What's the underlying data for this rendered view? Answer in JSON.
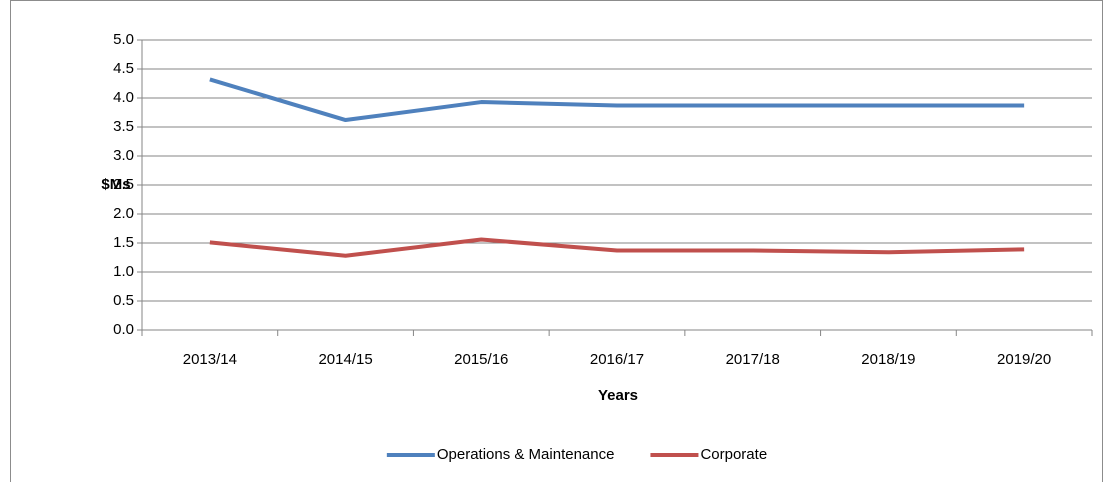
{
  "chart_data": {
    "type": "line",
    "y_label": "$Ms",
    "x_label": "Years",
    "categories": [
      "2013/14",
      "2014/15",
      "2015/16",
      "2016/17",
      "2017/18",
      "2018/19",
      "2019/20"
    ],
    "series": [
      {
        "name": "Operations & Maintenance",
        "color": "#4f81bd",
        "values": [
          4.32,
          3.62,
          3.93,
          3.87,
          3.87,
          3.87,
          3.87
        ]
      },
      {
        "name": "Corporate",
        "color": "#c0504d",
        "values": [
          1.51,
          1.28,
          1.56,
          1.37,
          1.37,
          1.34,
          1.39
        ]
      }
    ],
    "ylim": [
      0,
      5
    ],
    "yticks": [
      {
        "value": 0,
        "label": "0.0"
      },
      0.5,
      {
        "value": 1,
        "label": "1.0"
      },
      1.5,
      {
        "value": 2,
        "label": "2.0"
      },
      2.5,
      {
        "value": 3,
        "label": "3.0"
      },
      3.5,
      {
        "value": 4,
        "label": "4.0"
      },
      4.5,
      {
        "value": 5,
        "label": "5.0"
      }
    ],
    "grid": true,
    "legend": "bottom"
  }
}
